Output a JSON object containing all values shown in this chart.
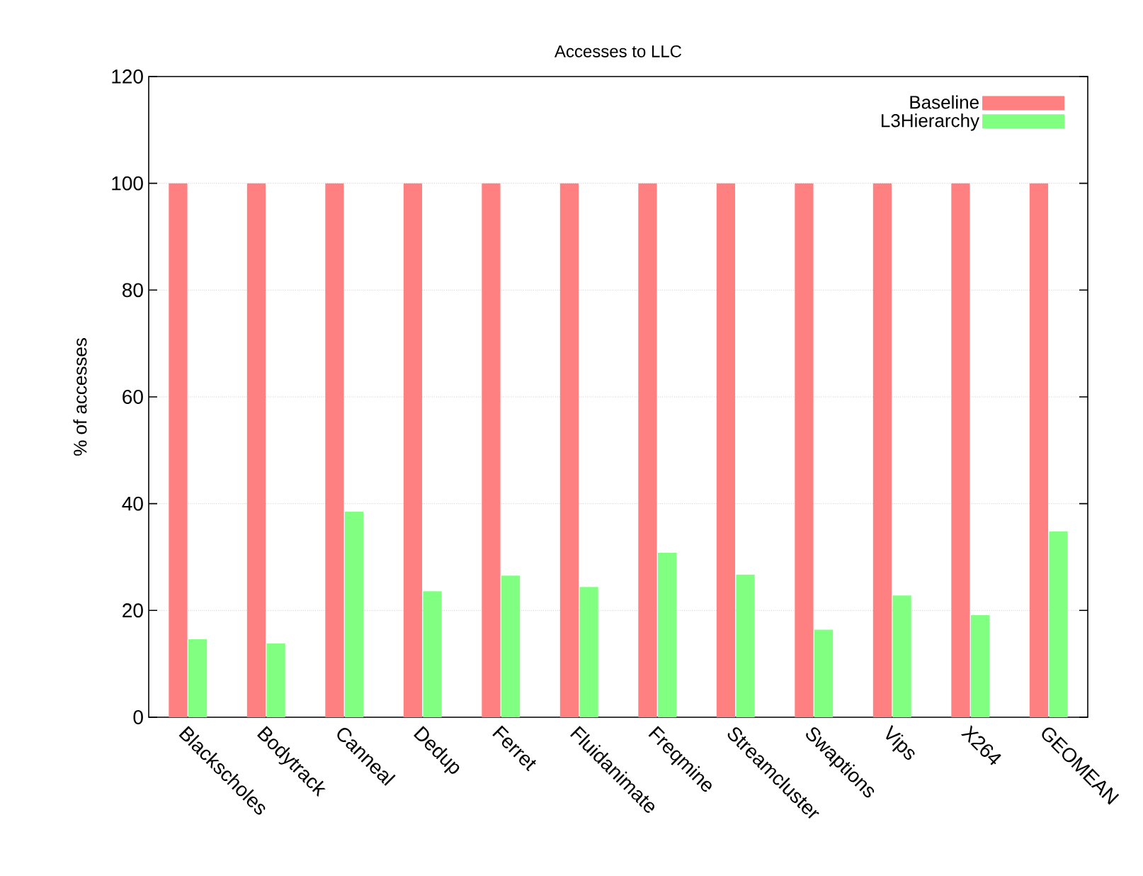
{
  "chart_data": {
    "type": "bar",
    "title": "Accesses to LLC",
    "ylabel": "% of accesses",
    "categories": [
      "Blackscholes",
      "Bodytrack",
      "Canneal",
      "Dedup",
      "Ferret",
      "Fluidanimate",
      "Freqmine",
      "Streamcluster",
      "Swaptions",
      "Vips",
      "X264",
      "GEOMEAN"
    ],
    "series": [
      {
        "name": "Baseline",
        "color": "#ff8080",
        "values": [
          100,
          100,
          100,
          100,
          100,
          100,
          100,
          100,
          100,
          100,
          100,
          100
        ]
      },
      {
        "name": "L3Hierarchy",
        "color": "#80ff80",
        "values": [
          14.6,
          13.8,
          38.5,
          23.6,
          26.5,
          24.4,
          30.8,
          26.7,
          16.4,
          22.8,
          19.1,
          34.8
        ]
      }
    ],
    "ylim": [
      0,
      120
    ],
    "yticks": [
      0,
      20,
      40,
      60,
      80,
      100,
      120
    ],
    "grid": "y",
    "legend": "top right"
  }
}
